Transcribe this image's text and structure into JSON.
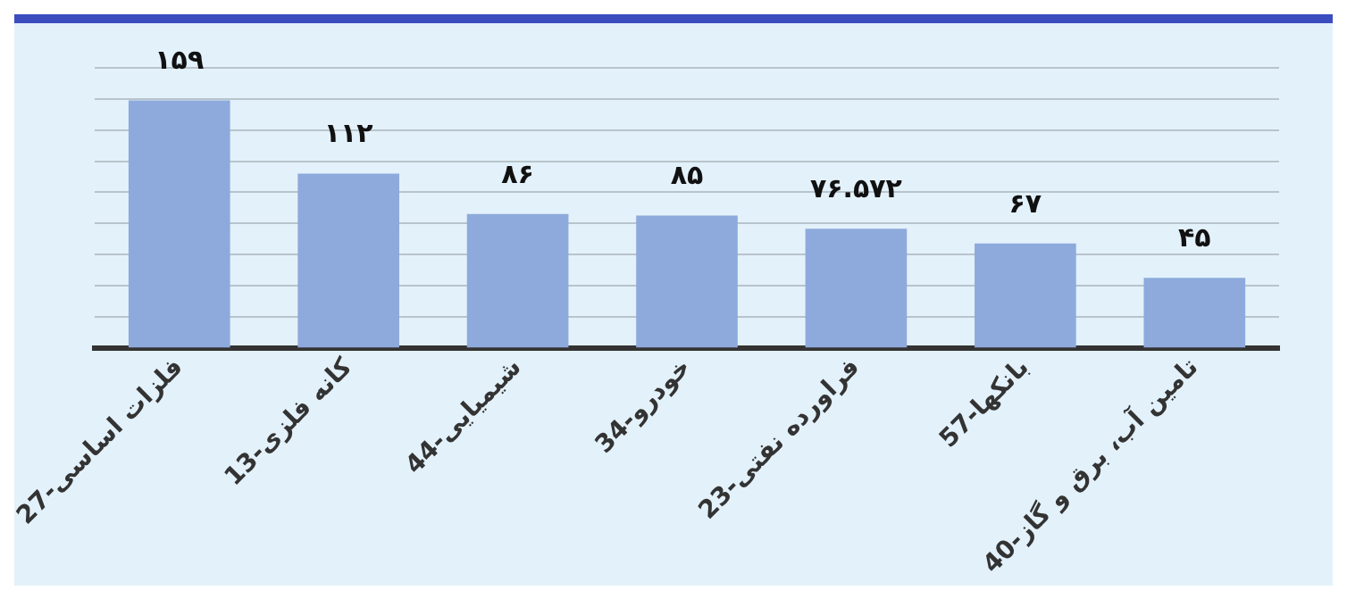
{
  "chart_data": {
    "type": "bar",
    "categories": [
      "27-فلزات اساسی",
      "13-کانه فلزی",
      "44-شیمیایی",
      "34-خودرو",
      "23-فراورده نفتی",
      "57-بانکها",
      "40-تامین آب، برق و گاز"
    ],
    "values": [
      159,
      112,
      86,
      85,
      76.572,
      67,
      45
    ],
    "value_labels": [
      "۱۵۹",
      "۱۱۲",
      "۸۶",
      "۸۵",
      "۷۶.۵۷۲",
      "۶۷",
      "۴۵"
    ],
    "color": "#8eaadc",
    "ylim": [
      0,
      180
    ],
    "yticks": [
      {
        "value": 20,
        "label": null
      },
      {
        "value": 40,
        "label": null
      },
      {
        "value": 60,
        "label": null
      },
      {
        "value": 80,
        "label": null
      },
      {
        "value": 100,
        "label": null
      },
      {
        "value": 120,
        "label": null
      },
      {
        "value": 140,
        "label": null
      },
      {
        "value": 160,
        "label": null
      },
      {
        "value": 180,
        "label": null
      }
    ],
    "grid": "y",
    "tick_labels": "x",
    "legend": false
  }
}
